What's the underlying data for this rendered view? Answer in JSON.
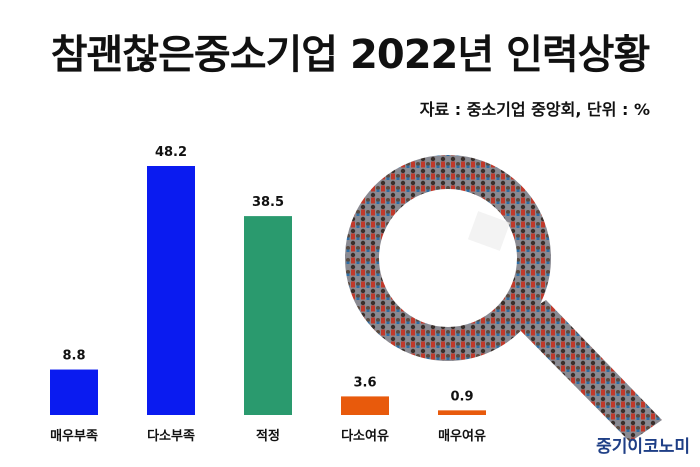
{
  "header": {
    "title": "참괜찮은중소기업 2022년 인력상황",
    "source": "자료 : 중소기업 중앙회, 단위 : %"
  },
  "brand": {
    "name": "중기이코노미"
  },
  "decoration": {
    "illustration": "magnifying-glass-made-of-crowd-icon"
  },
  "chart_data": {
    "type": "bar",
    "categories": [
      "매우부족",
      "다소부족",
      "적정",
      "다소여유",
      "매우여유"
    ],
    "values": [
      8.8,
      48.2,
      38.5,
      3.6,
      0.9
    ],
    "value_labels": [
      "8.8",
      "48.2",
      "38.5",
      "3.6",
      "0.9"
    ],
    "colors": [
      "#0a1bf0",
      "#0a1bf0",
      "#2a9a6e",
      "#e85a0c",
      "#e85a0c"
    ],
    "ylim": [
      0,
      48.2
    ],
    "grid": false,
    "legend": "none"
  }
}
